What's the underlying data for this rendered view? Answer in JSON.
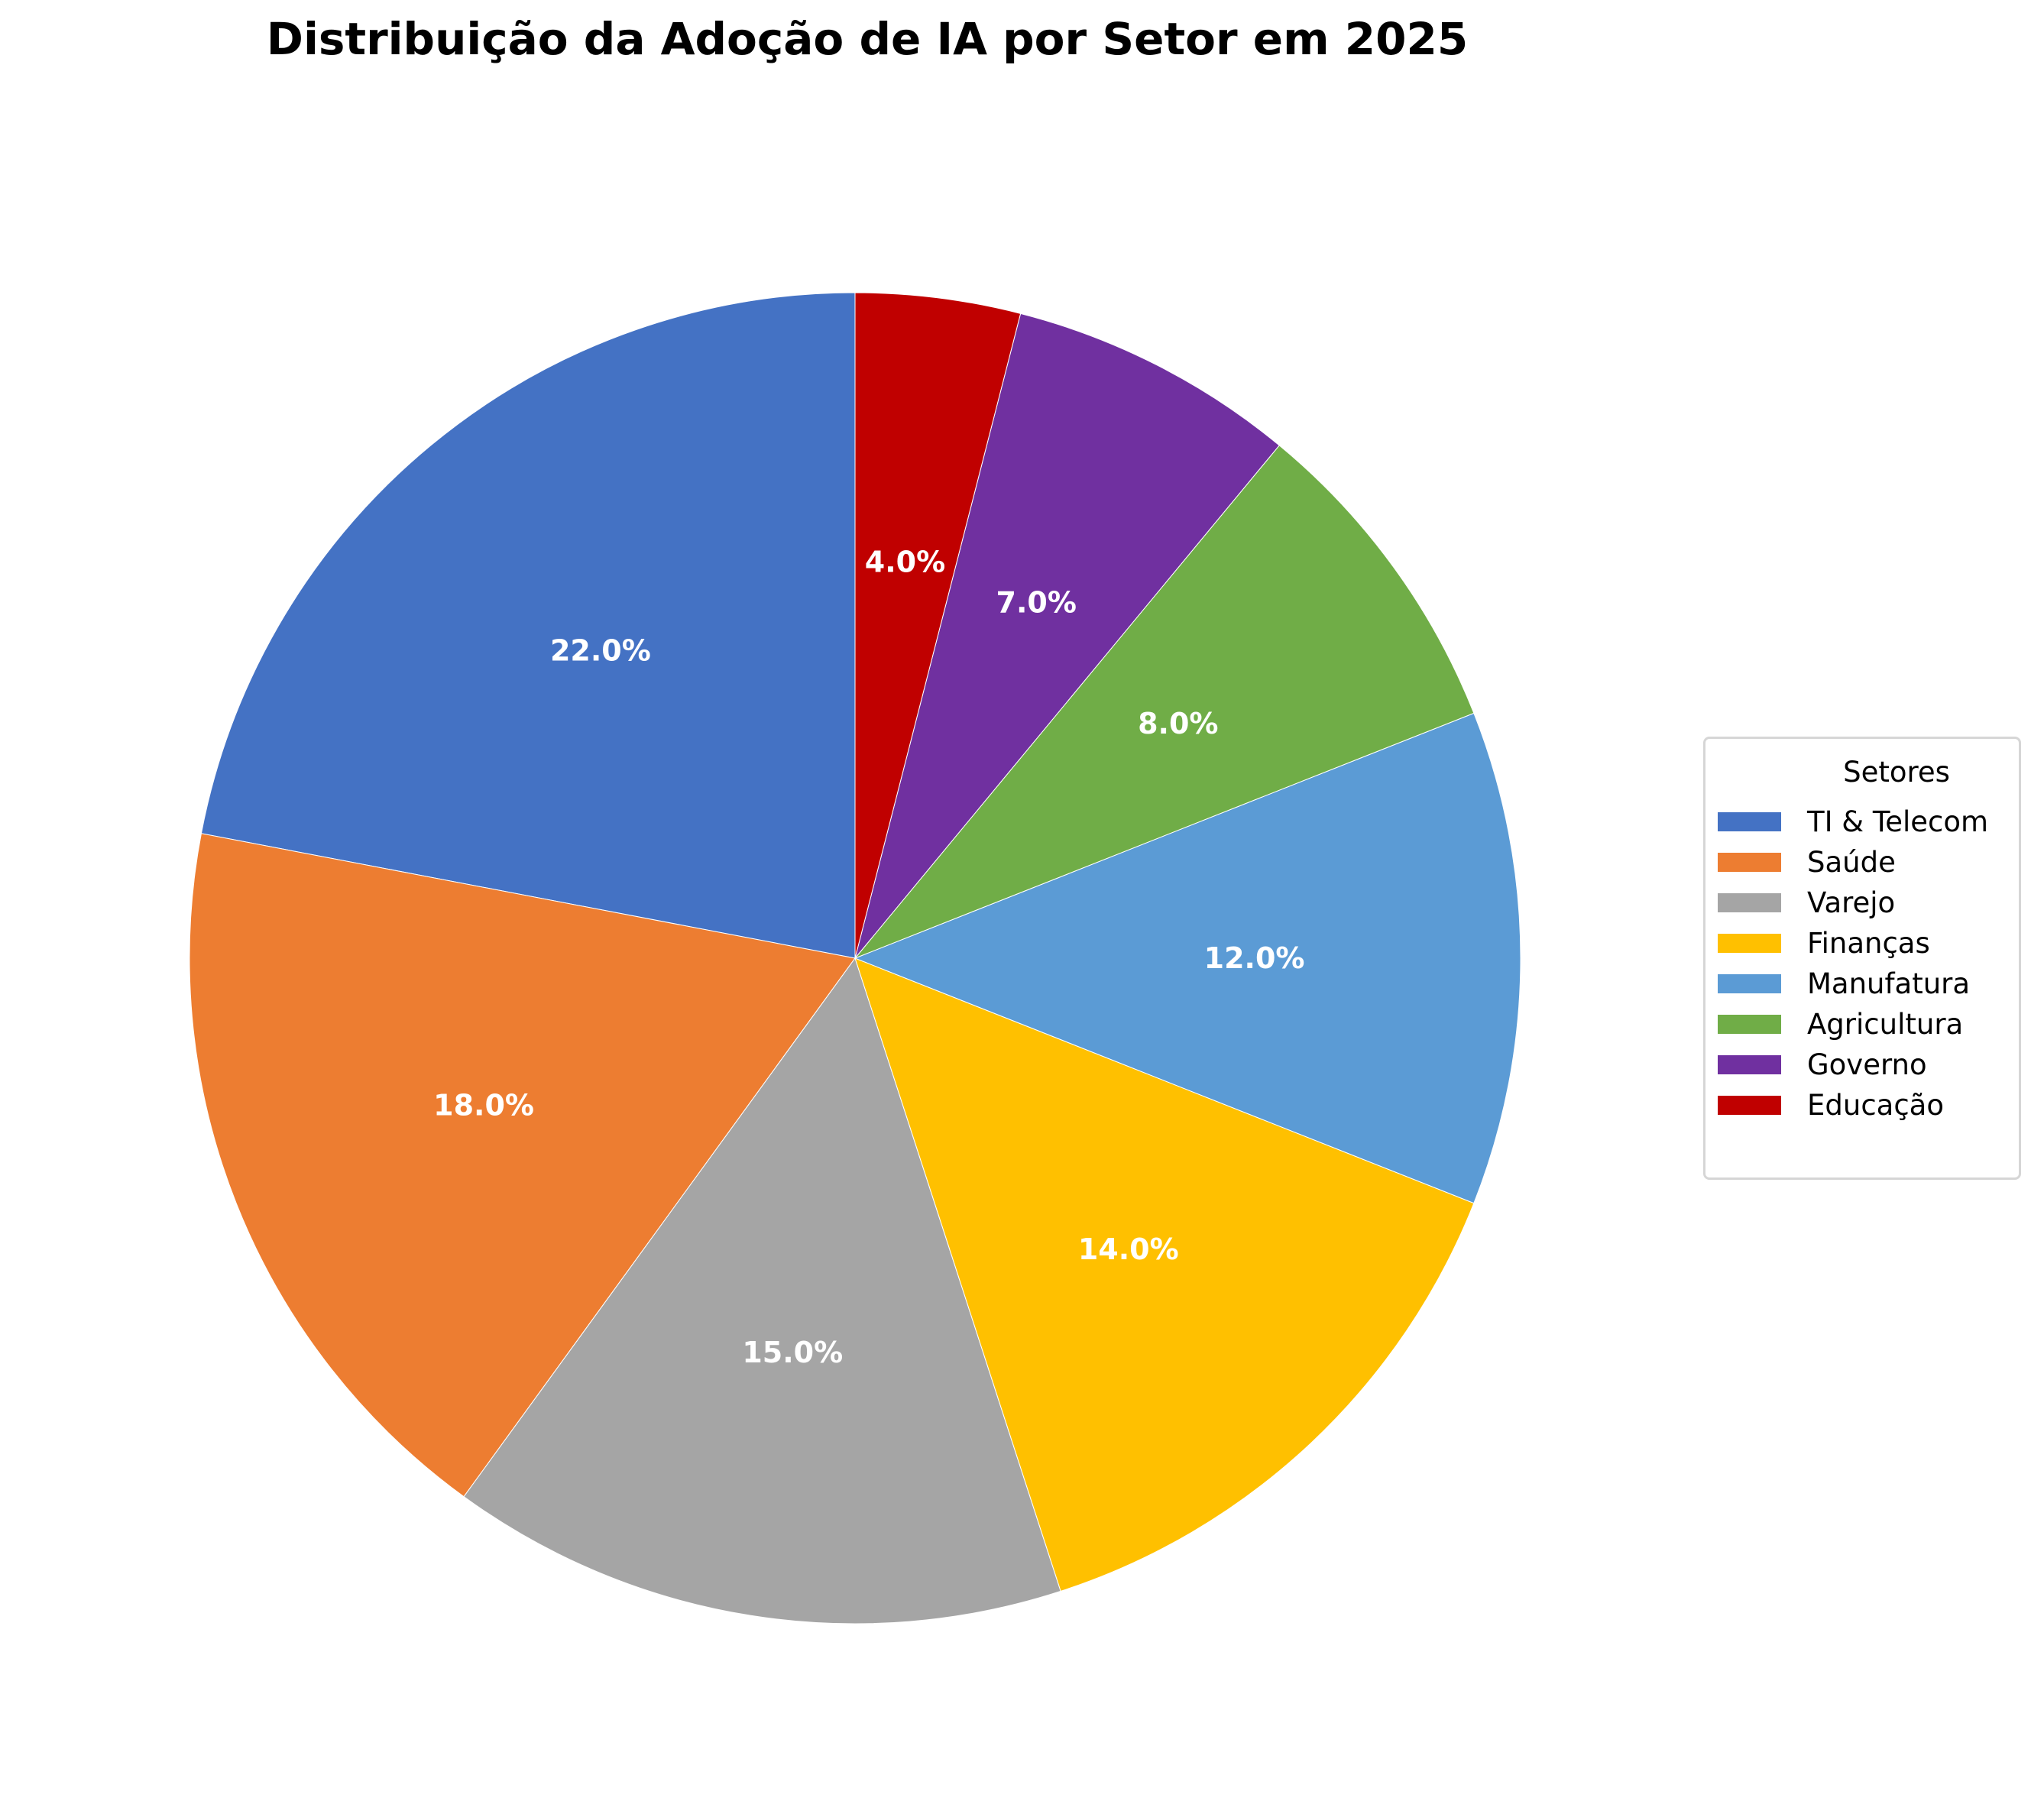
{
  "chart_data": {
    "type": "pie",
    "title": "Distribuição da Adoção de IA por Setor em 2025",
    "categories": [
      "TI & Telecom",
      "Saúde",
      "Varejo",
      "Finanças",
      "Manufatura",
      "Agricultura",
      "Governo",
      "Educação"
    ],
    "values": [
      22.0,
      18.0,
      15.0,
      14.0,
      12.0,
      8.0,
      7.0,
      4.0
    ],
    "labels": [
      "22.0%",
      "18.0%",
      "15.0%",
      "14.0%",
      "12.0%",
      "8.0%",
      "7.0%",
      "4.0%"
    ],
    "colors": [
      "#4472C4",
      "#ED7D31",
      "#A5A5A5",
      "#FFC000",
      "#5B9BD5",
      "#70AD47",
      "#7030A0",
      "#C00000"
    ],
    "start_angle_deg": 90,
    "direction": "counterclockwise",
    "label_color": "#FFFFFF",
    "legend": {
      "title": "Setores",
      "position": "right"
    }
  },
  "title": "Distribuição da Adoção de IA por Setor em 2025",
  "legend": {
    "title": "Setores",
    "items": [
      {
        "label": "TI & Telecom",
        "color": "#4472C4"
      },
      {
        "label": "Saúde",
        "color": "#ED7D31"
      },
      {
        "label": "Varejo",
        "color": "#A5A5A5"
      },
      {
        "label": "Finanças",
        "color": "#FFC000"
      },
      {
        "label": "Manufatura",
        "color": "#5B9BD5"
      },
      {
        "label": "Agricultura",
        "color": "#70AD47"
      },
      {
        "label": "Governo",
        "color": "#7030A0"
      },
      {
        "label": "Educação",
        "color": "#C00000"
      }
    ]
  }
}
